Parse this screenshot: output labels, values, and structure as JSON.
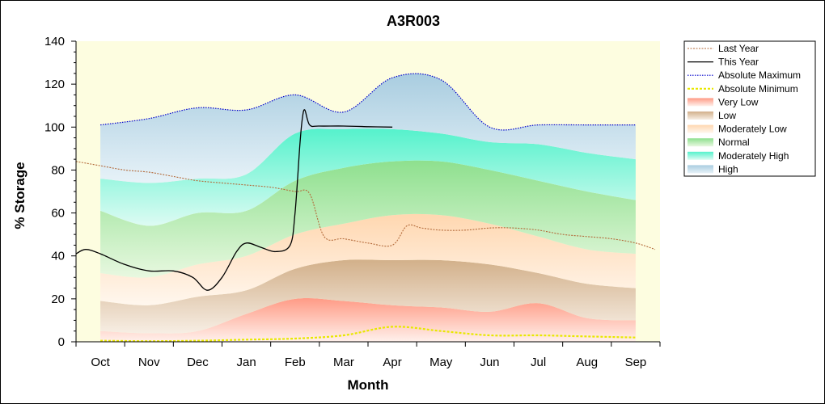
{
  "chart_data": {
    "type": "area",
    "title": "A3R003",
    "xlabel": "Month",
    "ylabel": "% Storage",
    "ylim": [
      0,
      140
    ],
    "yticks": [
      0,
      20,
      40,
      60,
      80,
      100,
      120,
      140
    ],
    "month_labels": [
      "Oct",
      "Nov",
      "Dec",
      "Jan",
      "Feb",
      "Mar",
      "Apr",
      "May",
      "Jun",
      "Jul",
      "Aug",
      "Sep"
    ],
    "month_positions": [
      0,
      1,
      2,
      3,
      4,
      5,
      6,
      7,
      8,
      9,
      10,
      11
    ],
    "xlim": [
      -0.5,
      11.5
    ],
    "x": [
      0,
      1,
      2,
      3,
      4,
      5,
      6,
      7,
      8,
      9,
      10,
      11
    ],
    "legend_position": "right",
    "plot_background": "#fdfde0",
    "bands": [
      {
        "name": "Very Low",
        "color_top": "#ff9a85",
        "color_bottom": "#fff1ec",
        "upper": [
          5,
          4,
          5,
          13,
          20,
          19,
          17,
          16,
          14,
          18,
          11,
          10
        ]
      },
      {
        "name": "Low",
        "color_top": "#d2b08a",
        "color_bottom": "#f7eee4",
        "upper": [
          19,
          17,
          21,
          24,
          34,
          38,
          38,
          38,
          36,
          32,
          27,
          25
        ]
      },
      {
        "name": "Moderately Low",
        "color_top": "#ffd7b0",
        "color_bottom": "#fff7ee",
        "upper": [
          32,
          30,
          36,
          40,
          50,
          55,
          59,
          59,
          55,
          49,
          43,
          41
        ]
      },
      {
        "name": "Normal",
        "color_top": "#8ee08e",
        "color_bottom": "#e8f8e0",
        "upper": [
          61,
          54,
          60,
          61,
          75,
          81,
          84,
          84,
          80,
          75,
          70,
          66
        ]
      },
      {
        "name": "Moderately High",
        "color_top": "#55f2cc",
        "color_bottom": "#ddfbf3",
        "upper": [
          76,
          74,
          76,
          78,
          97,
          99,
          99,
          97,
          93,
          92,
          88,
          85
        ]
      },
      {
        "name": "High",
        "color_top": "#a9cde0",
        "color_bottom": "#e7f2f8",
        "upper": [
          101,
          104,
          109,
          108,
          115,
          107,
          123,
          122,
          100,
          101,
          101,
          101
        ]
      }
    ],
    "absolute_maximum": {
      "name": "Absolute Maximum",
      "color": "#0000cc",
      "values": [
        101,
        104,
        109,
        108,
        115,
        107,
        123,
        122,
        100,
        101,
        101,
        101
      ]
    },
    "absolute_minimum": {
      "name": "Absolute Minimum",
      "color": "#e8e800",
      "values": [
        0.5,
        0.3,
        0.5,
        1,
        1.5,
        3,
        7,
        5,
        3,
        3,
        2.5,
        2
      ]
    },
    "last_year": {
      "name": "Last Year",
      "color": "#b36a3a",
      "x": [
        -0.5,
        0,
        0.5,
        1,
        1.5,
        2,
        2.5,
        3,
        3.5,
        4,
        4.3,
        4.6,
        5,
        5.5,
        6,
        6.3,
        6.6,
        7,
        7.5,
        8,
        8.5,
        9,
        9.5,
        10,
        10.5,
        11,
        11.4
      ],
      "values": [
        84,
        82,
        80,
        79,
        77,
        75,
        74,
        73,
        72,
        70,
        69,
        49,
        48,
        46,
        45,
        54,
        53,
        52,
        52,
        53,
        53,
        52,
        50,
        49,
        48,
        46,
        43
      ]
    },
    "this_year": {
      "name": "This Year",
      "color": "#000000",
      "x": [
        -0.5,
        -0.3,
        0,
        0.5,
        1,
        1.5,
        1.9,
        2.2,
        2.5,
        2.8,
        3,
        3.3,
        3.6,
        3.9,
        4,
        4.1,
        4.15,
        4.2,
        4.3,
        4.5,
        5,
        5.5,
        6
      ],
      "values": [
        41,
        43,
        41,
        36,
        33,
        33,
        30,
        24,
        30,
        42,
        46,
        44,
        42,
        45,
        60,
        92,
        104,
        108,
        101,
        100.5,
        100.5,
        100.2,
        100
      ]
    },
    "legend": [
      "Last Year",
      "This Year",
      "Absolute Maximum",
      "Absolute Minimum",
      "Very Low",
      "Low",
      "Moderately Low",
      "Normal",
      "Moderately High",
      "High"
    ]
  }
}
